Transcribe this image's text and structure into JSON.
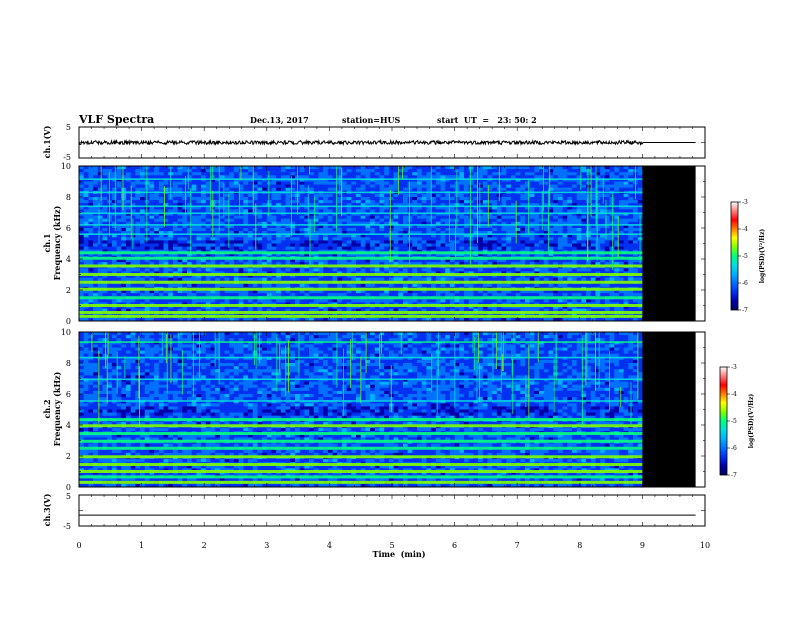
{
  "header": {
    "title": "VLF Spectra",
    "date": "Dec.13, 2017",
    "station": "station=HUS",
    "start": "start  UT  =   23: 50: 2"
  },
  "chart_data": [
    {
      "type": "line",
      "panel": "ch1-waveform",
      "ylabel": "ch.1(V)",
      "ylim": [
        -5,
        5
      ],
      "yticks": [
        "5",
        "-5"
      ],
      "xlim": [
        0,
        10
      ],
      "signal_level": 0,
      "signal_amplitude": 0.6,
      "signal_end_min": 9.0,
      "line_end_min": 9.85,
      "color": "#000000"
    },
    {
      "type": "heatmap",
      "panel": "ch1-spectrogram",
      "ylabel": "ch.1",
      "ylabel2": "Frequency (kHz)",
      "ylim": [
        0,
        10
      ],
      "yticks": [
        "0",
        "2",
        "4",
        "6",
        "8",
        "10"
      ],
      "xlim": [
        0,
        10
      ],
      "data_end_min": 9.0,
      "record_end_min": 9.85,
      "bands_khz": [
        0.3,
        0.55,
        1.0,
        1.5,
        2.05,
        2.5,
        3.0,
        3.55,
        4.05,
        4.4,
        5.6,
        6.2,
        6.95,
        7.4,
        8.3,
        9.15
      ],
      "colorbar": {
        "label": "log(PSD)(V²/Hz)",
        "range": [
          -7,
          -3
        ],
        "ticks": [
          "-3",
          "-4",
          "-5",
          "-6",
          "-7"
        ]
      }
    },
    {
      "type": "heatmap",
      "panel": "ch2-spectrogram",
      "ylabel": "ch.2",
      "ylabel2": "Frequency (kHz)",
      "ylim": [
        0,
        10
      ],
      "yticks": [
        "0",
        "2",
        "4",
        "6",
        "8",
        "10"
      ],
      "xlim": [
        0,
        10
      ],
      "data_end_min": 9.0,
      "record_end_min": 9.85,
      "bands_khz": [
        0.3,
        0.65,
        1.0,
        1.45,
        1.95,
        2.5,
        2.95,
        3.45,
        3.95,
        4.35,
        5.55,
        6.95,
        8.35,
        9.35
      ],
      "colorbar": {
        "label": "log(PSD)(V²/Hz)",
        "range": [
          -7,
          -3
        ],
        "ticks": [
          "-3",
          "-4",
          "-5",
          "-6",
          "-7"
        ]
      }
    },
    {
      "type": "line",
      "panel": "ch3-waveform",
      "ylabel": "ch.3(V)",
      "ylim": [
        -5,
        5
      ],
      "yticks": [
        "5",
        "-5"
      ],
      "xlim": [
        0,
        10
      ],
      "signal_level": -1.5,
      "signal_amplitude": 0,
      "line_end_min": 9.85,
      "color": "#000000"
    }
  ],
  "xaxis": {
    "label": "Time  (min)",
    "ticks": [
      "0",
      "1",
      "2",
      "3",
      "4",
      "5",
      "6",
      "7",
      "8",
      "9",
      "10"
    ]
  },
  "colormap": [
    "#000060",
    "#0000a8",
    "#0030f0",
    "#0070ff",
    "#00b0ff",
    "#00e0e0",
    "#00ff80",
    "#80ff00",
    "#ffff00",
    "#ff8000",
    "#ff0000",
    "#ff8080",
    "#ffffff"
  ]
}
